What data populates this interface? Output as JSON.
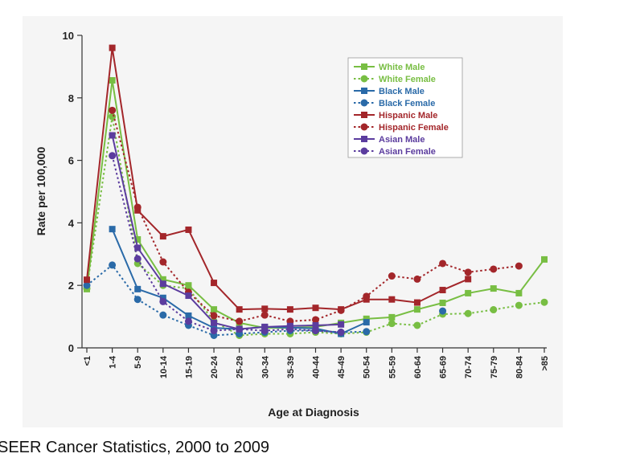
{
  "chart_data": {
    "type": "line",
    "xlabel": "Age at Diagnosis",
    "ylabel": "Rate per 100,000",
    "categories": [
      "<1",
      "1-4",
      "5-9",
      "10-14",
      "15-19",
      "20-24",
      "25-29",
      "30-34",
      "35-39",
      "40-44",
      "45-49",
      "50-54",
      "55-59",
      "60-64",
      "65-69",
      "70-74",
      "75-79",
      "80-84",
      ">85"
    ],
    "ylim": [
      0,
      10
    ],
    "yticks": [
      0,
      2,
      4,
      6,
      8,
      10
    ],
    "legend": "upper right",
    "series": [
      {
        "name": "White Male",
        "color": "#78be43",
        "style": "solid",
        "marker": "square",
        "values": [
          1.88,
          8.56,
          3.47,
          2.19,
          2.0,
          1.23,
          0.8,
          0.64,
          0.64,
          0.67,
          0.8,
          0.93,
          0.98,
          1.23,
          1.44,
          1.75,
          1.9,
          1.75,
          2.83
        ]
      },
      {
        "name": "White Female",
        "color": "#78be43",
        "style": "dotted",
        "marker": "circle",
        "values": [
          1.9,
          7.4,
          2.7,
          2.0,
          1.9,
          0.85,
          0.4,
          0.45,
          0.45,
          0.5,
          0.45,
          0.5,
          0.78,
          0.72,
          1.08,
          1.1,
          1.22,
          1.36,
          1.46
        ]
      },
      {
        "name": "Black Male",
        "color": "#2a6aa8",
        "style": "solid",
        "marker": "square",
        "values": [
          null,
          3.8,
          1.88,
          1.6,
          1.03,
          0.64,
          0.6,
          0.67,
          0.65,
          0.62,
          0.45,
          0.82,
          null,
          null,
          null,
          null,
          null,
          null,
          null
        ]
      },
      {
        "name": "Black Female",
        "color": "#2a6aa8",
        "style": "dotted",
        "marker": "circle",
        "values": [
          2.0,
          2.65,
          1.55,
          1.05,
          0.72,
          0.4,
          0.45,
          0.5,
          0.55,
          0.55,
          0.5,
          0.52,
          null,
          null,
          1.18,
          null,
          null,
          null,
          null
        ]
      },
      {
        "name": "Hispanic Male",
        "color": "#a3262a",
        "style": "solid",
        "marker": "square",
        "values": [
          2.18,
          9.6,
          4.4,
          3.57,
          3.78,
          2.08,
          1.23,
          1.25,
          1.23,
          1.28,
          1.23,
          1.55,
          1.55,
          1.45,
          1.85,
          2.2,
          null,
          null,
          null
        ]
      },
      {
        "name": "Hispanic Female",
        "color": "#a3262a",
        "style": "dotted",
        "marker": "circle",
        "values": [
          null,
          7.6,
          4.5,
          2.75,
          1.78,
          1.03,
          0.85,
          1.05,
          0.85,
          0.9,
          1.2,
          1.65,
          2.3,
          2.2,
          2.7,
          2.42,
          2.52,
          2.62,
          null
        ]
      },
      {
        "name": "Asian Male",
        "color": "#5b3c9e",
        "style": "solid",
        "marker": "square",
        "values": [
          null,
          6.8,
          3.2,
          2.05,
          1.67,
          0.8,
          0.6,
          0.67,
          0.7,
          0.72,
          0.75,
          null,
          null,
          null,
          null,
          null,
          null,
          null,
          null
        ]
      },
      {
        "name": "Asian Female",
        "color": "#5b3c9e",
        "style": "dotted",
        "marker": "circle",
        "values": [
          null,
          6.15,
          2.85,
          1.48,
          0.85,
          0.55,
          0.6,
          0.55,
          0.6,
          0.55,
          0.5,
          null,
          null,
          null,
          null,
          null,
          null,
          null,
          null
        ]
      }
    ]
  },
  "caption": "SEER Cancer Statistics, 2000 to 2009"
}
